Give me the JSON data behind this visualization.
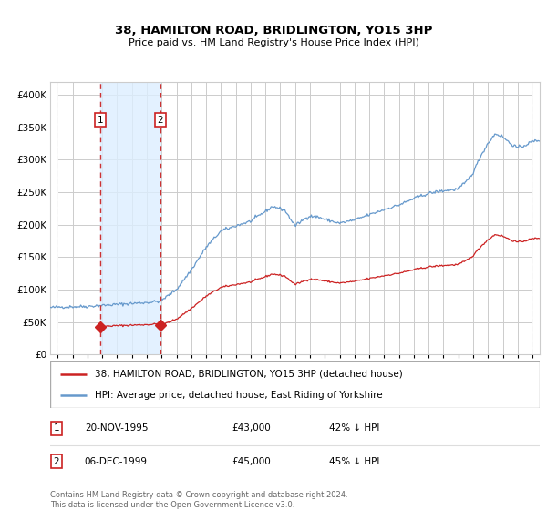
{
  "title": "38, HAMILTON ROAD, BRIDLINGTON, YO15 3HP",
  "subtitle": "Price paid vs. HM Land Registry's House Price Index (HPI)",
  "legend_line1": "38, HAMILTON ROAD, BRIDLINGTON, YO15 3HP (detached house)",
  "legend_line2": "HPI: Average price, detached house, East Riding of Yorkshire",
  "footer": "Contains HM Land Registry data © Crown copyright and database right 2024.\nThis data is licensed under the Open Government Licence v3.0.",
  "sale1_date": "20-NOV-1995",
  "sale1_price": "£43,000",
  "sale1_hpi": "42% ↓ HPI",
  "sale2_date": "06-DEC-1999",
  "sale2_price": "£45,000",
  "sale2_hpi": "45% ↓ HPI",
  "hpi_color": "#6699cc",
  "price_color": "#cc2222",
  "marker_color": "#cc2222",
  "sale_shade_color": "#ddeeff",
  "vline_color": "#cc3333",
  "ylim": [
    0,
    420000
  ],
  "yticks": [
    0,
    50000,
    100000,
    150000,
    200000,
    250000,
    300000,
    350000,
    400000
  ],
  "xlim_start": 1992.5,
  "xlim_end": 2025.5,
  "sale1_t": 1995.88,
  "sale2_t": 1999.92,
  "sale1_price_val": 43000,
  "sale2_price_val": 45000
}
